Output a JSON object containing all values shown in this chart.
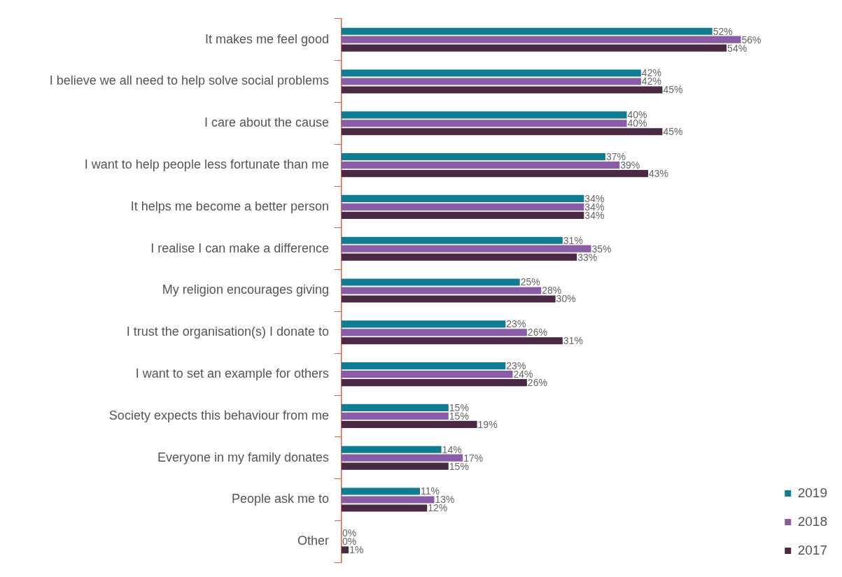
{
  "chart_data": {
    "type": "bar",
    "orientation": "horizontal",
    "legend": "bottom right",
    "grid": false,
    "categories": [
      "It makes me feel good",
      "I believe we all need to help solve social problems",
      "I care about the cause",
      "I want to help people less fortunate than me",
      "It helps me become a better person",
      "I realise I can make a difference",
      "My religion encourages giving",
      "I trust the organisation(s) I donate to",
      "I want to set an example for others",
      "Society expects this behaviour from me",
      "Everyone in my family donates",
      "People ask me to",
      "Other"
    ],
    "series": [
      {
        "name": "2019",
        "color": "#0e7c92",
        "values": [
          52,
          42,
          40,
          37,
          34,
          31,
          25,
          23,
          23,
          15,
          14,
          11,
          0
        ],
        "value_labels": [
          "52%",
          "42%",
          "40%",
          "37%",
          "34%",
          "31%",
          "25%",
          "23%",
          "23%",
          "15%",
          "14%",
          "11%",
          "0%"
        ]
      },
      {
        "name": "2018",
        "color": "#8a5ca8",
        "values": [
          56,
          42,
          40,
          39,
          34,
          35,
          28,
          26,
          24,
          15,
          17,
          13,
          0
        ],
        "value_labels": [
          "56%",
          "42%",
          "40%",
          "39%",
          "34%",
          "35%",
          "28%",
          "26%",
          "24%",
          "15%",
          "17%",
          "13%",
          "0%"
        ]
      },
      {
        "name": "2017",
        "color": "#4b2843",
        "values": [
          54,
          45,
          45,
          43,
          34,
          33,
          30,
          31,
          26,
          19,
          15,
          12,
          1
        ],
        "value_labels": [
          "54%",
          "45%",
          "45%",
          "43%",
          "34%",
          "33%",
          "30%",
          "31%",
          "26%",
          "19%",
          "15%",
          "12%",
          "1%"
        ]
      }
    ]
  }
}
